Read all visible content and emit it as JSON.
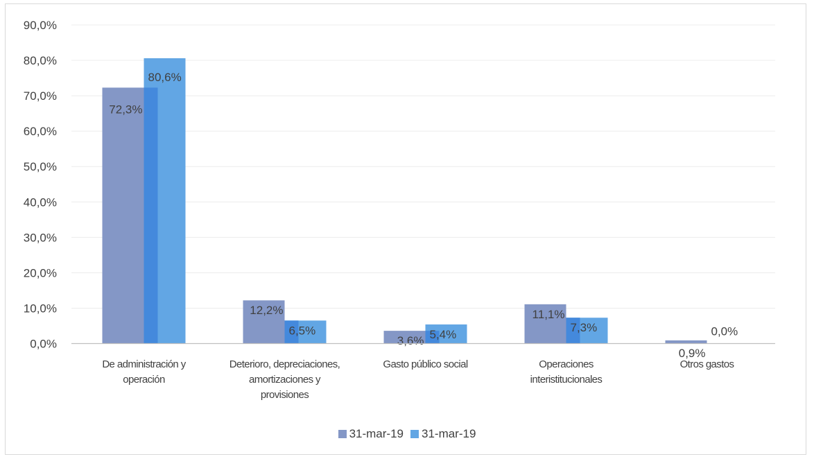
{
  "chart_data": {
    "type": "bar",
    "categories": [
      [
        "De administración y",
        "operación"
      ],
      [
        "Deterioro, depreciaciones,",
        "amortizaciones y",
        "provisiones"
      ],
      [
        "Gasto público social"
      ],
      [
        "Operaciones",
        "interistitucionales"
      ],
      [
        "Otros gastos"
      ]
    ],
    "series": [
      {
        "name": "31-mar-19",
        "values": [
          72.3,
          12.2,
          3.6,
          11.1,
          0.9
        ],
        "labels": [
          "72,3%",
          "12,2%",
          "3,6%",
          "11,1%",
          "0,9%"
        ],
        "color": "#8497c6"
      },
      {
        "name": "31-mar-19",
        "values": [
          80.6,
          6.5,
          5.4,
          7.3,
          0.0
        ],
        "labels": [
          "80,6%",
          "6,5%",
          "5,4%",
          "7,3%",
          "0,0%"
        ],
        "color": "#62a6e4"
      }
    ],
    "overlap_color": "#4489dc",
    "yticks": [
      "0,0%",
      "10,0%",
      "20,0%",
      "30,0%",
      "40,0%",
      "50,0%",
      "60,0%",
      "70,0%",
      "80,0%",
      "90,0%"
    ],
    "ylim": [
      0,
      90
    ],
    "grid": true,
    "legend_position": "bottom"
  }
}
